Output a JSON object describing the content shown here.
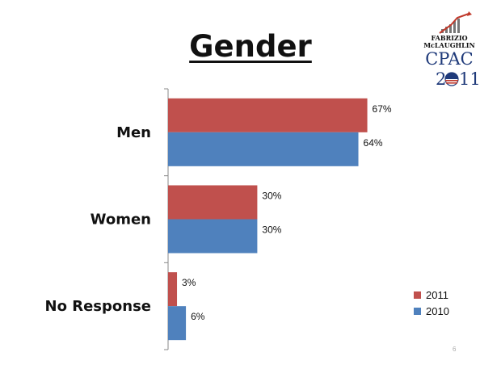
{
  "title": "Gender",
  "logo": {
    "line1": "FABRIZIO",
    "line2": "McLAUGHLIN",
    "line3": "CPAC",
    "line4_left": "2",
    "line4_right": "11"
  },
  "page_number": "6",
  "colors": {
    "series_2011": "#c0504d",
    "series_2010": "#4f81bd",
    "axis": "#888888"
  },
  "chart_data": {
    "type": "bar",
    "orientation": "horizontal",
    "categories": [
      "Men",
      "Women",
      "No Response"
    ],
    "series": [
      {
        "name": "2011",
        "values": [
          67,
          30,
          3
        ],
        "labels": [
          "67%",
          "30%",
          "3%"
        ]
      },
      {
        "name": "2010",
        "values": [
          64,
          30,
          6
        ],
        "labels": [
          "64%",
          "30%",
          "6%"
        ]
      }
    ],
    "title": "Gender",
    "xlim": [
      0,
      100
    ],
    "value_unit": "%",
    "grid": false,
    "legend_placement": "bottom-right"
  }
}
